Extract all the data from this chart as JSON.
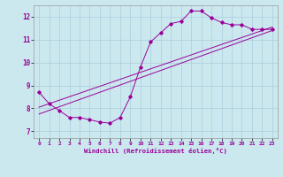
{
  "xlabel": "Windchill (Refroidissement éolien,°C)",
  "bg_color": "#cce8ef",
  "line_color": "#990099",
  "grid_color": "#aaccdd",
  "xlim": [
    -0.5,
    23.5
  ],
  "ylim": [
    6.7,
    12.5
  ],
  "xticks": [
    0,
    1,
    2,
    3,
    4,
    5,
    6,
    7,
    8,
    9,
    10,
    11,
    12,
    13,
    14,
    15,
    16,
    17,
    18,
    19,
    20,
    21,
    22,
    23
  ],
  "yticks": [
    7,
    8,
    9,
    10,
    11,
    12
  ],
  "line1_x": [
    0,
    1,
    2,
    3,
    4,
    5,
    6,
    7,
    8,
    9,
    10,
    11,
    12,
    13,
    14,
    15,
    16,
    17,
    18,
    19,
    20,
    21,
    22,
    23
  ],
  "line1_y": [
    8.7,
    8.2,
    7.9,
    7.6,
    7.6,
    7.5,
    7.4,
    7.35,
    7.6,
    8.5,
    9.8,
    10.9,
    11.3,
    11.7,
    11.8,
    12.25,
    12.25,
    11.95,
    11.75,
    11.65,
    11.65,
    11.45,
    11.45,
    11.45
  ],
  "line2_x": [
    0,
    23
  ],
  "line2_y": [
    7.75,
    11.4
  ],
  "line3_x": [
    0,
    23
  ],
  "line3_y": [
    8.05,
    11.55
  ]
}
